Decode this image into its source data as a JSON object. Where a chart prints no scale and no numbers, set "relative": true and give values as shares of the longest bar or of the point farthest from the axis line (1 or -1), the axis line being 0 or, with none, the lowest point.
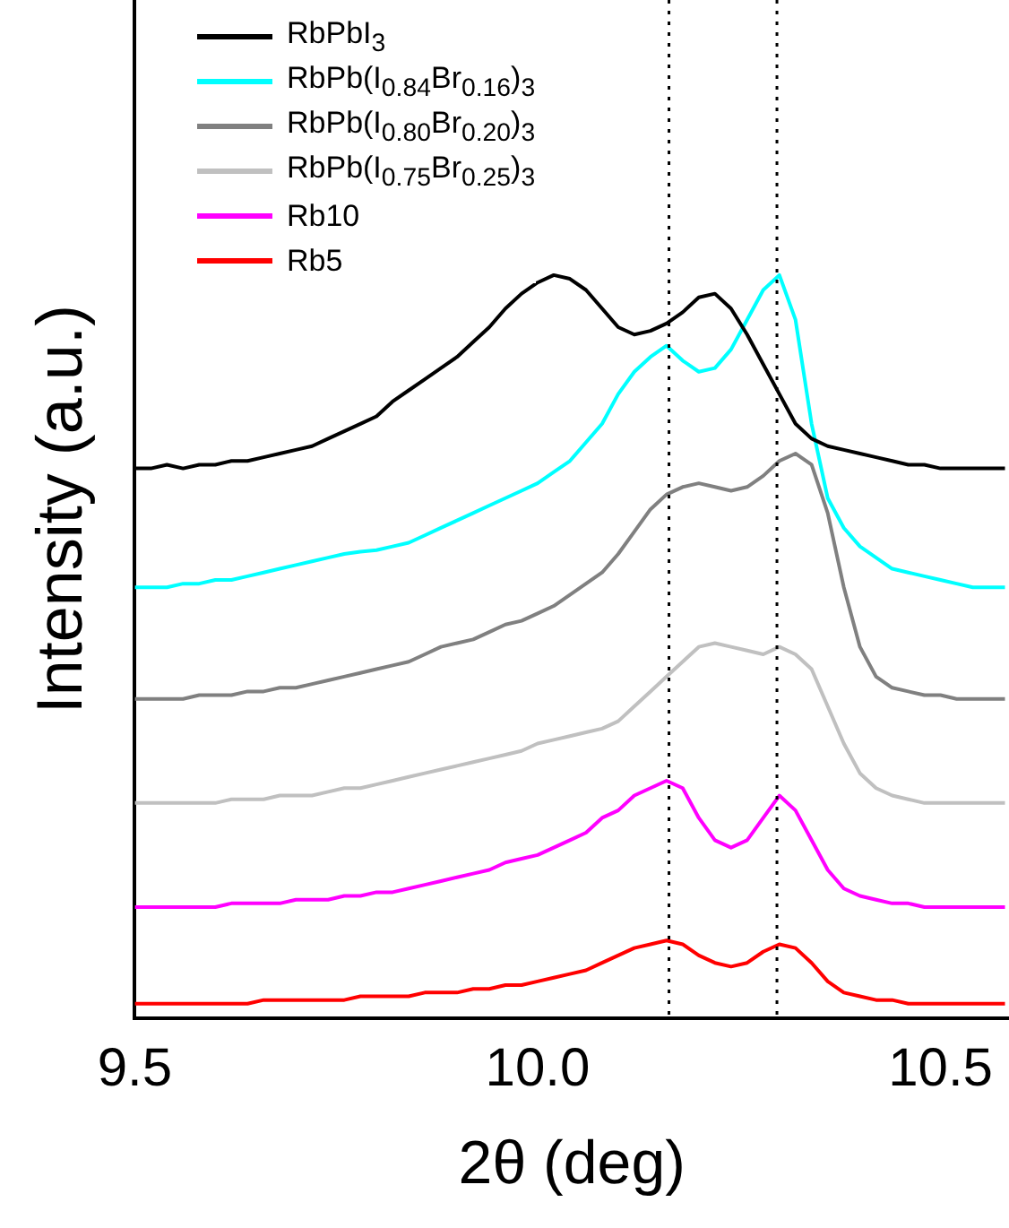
{
  "chart_data": {
    "type": "line",
    "xlabel": "2θ (deg)",
    "ylabel": "Intensity (a.u.)",
    "relative": true,
    "legend": "top left",
    "grid": false,
    "marker": "none",
    "line_style": "solid",
    "xlim": [
      9.5,
      10.585
    ],
    "xticks": [
      9.5,
      {
        "value": 10.0,
        "label": "10.0"
      },
      10.5
    ],
    "tick_labels": "x",
    "x": [
      9.5,
      9.52,
      9.54,
      9.56,
      9.58,
      9.6,
      9.62,
      9.64,
      9.66,
      9.68,
      9.7,
      9.72,
      9.74,
      9.76,
      9.78,
      9.8,
      9.82,
      9.84,
      9.86,
      9.88,
      9.9,
      9.92,
      9.94,
      9.96,
      9.98,
      10.0,
      10.02,
      10.04,
      10.06,
      10.08,
      10.1,
      10.12,
      10.14,
      10.16,
      10.18,
      10.2,
      10.22,
      10.24,
      10.26,
      10.28,
      10.3,
      10.32,
      10.34,
      10.36,
      10.38,
      10.4,
      10.42,
      10.44,
      10.46,
      10.48,
      10.5,
      10.52,
      10.54,
      10.56,
      10.58
    ],
    "ref_lines": [
      {
        "axis": "x",
        "value": 10.163,
        "color": "#000000",
        "line_style": "dotted"
      },
      {
        "axis": "x",
        "value": 10.297,
        "color": "#000000",
        "line_style": "dotted"
      }
    ],
    "series": [
      {
        "name": "RbPbI$_{3}$",
        "color": "#000000",
        "values": [
          0.74,
          0.74,
          0.745,
          0.74,
          0.745,
          0.745,
          0.75,
          0.75,
          0.755,
          0.76,
          0.765,
          0.77,
          0.78,
          0.79,
          0.8,
          0.81,
          0.83,
          0.845,
          0.86,
          0.875,
          0.89,
          0.91,
          0.93,
          0.955,
          0.975,
          0.99,
          1.0,
          0.995,
          0.98,
          0.955,
          0.93,
          0.92,
          0.925,
          0.935,
          0.95,
          0.97,
          0.975,
          0.955,
          0.92,
          0.88,
          0.84,
          0.8,
          0.78,
          0.77,
          0.765,
          0.76,
          0.755,
          0.75,
          0.745,
          0.745,
          0.74,
          0.74,
          0.74,
          0.74,
          0.74
        ]
      },
      {
        "name": "RbPb(I$_{0.84}$Br$_{0.16}$)$_{3}$",
        "color": "#00ffff",
        "values": [
          0.58,
          0.58,
          0.58,
          0.585,
          0.585,
          0.59,
          0.59,
          0.595,
          0.6,
          0.605,
          0.61,
          0.615,
          0.62,
          0.625,
          0.628,
          0.63,
          0.635,
          0.64,
          0.65,
          0.66,
          0.67,
          0.68,
          0.69,
          0.7,
          0.71,
          0.72,
          0.735,
          0.75,
          0.775,
          0.8,
          0.84,
          0.87,
          0.89,
          0.905,
          0.885,
          0.87,
          0.875,
          0.9,
          0.94,
          0.98,
          1.0,
          0.94,
          0.8,
          0.7,
          0.66,
          0.635,
          0.62,
          0.605,
          0.6,
          0.595,
          0.59,
          0.585,
          0.58,
          0.58,
          0.58
        ]
      },
      {
        "name": "RbPb(I$_{0.80}$Br$_{0.20}$)$_{3}$",
        "color": "#808080",
        "values": [
          0.43,
          0.43,
          0.43,
          0.43,
          0.435,
          0.435,
          0.435,
          0.44,
          0.44,
          0.445,
          0.445,
          0.45,
          0.455,
          0.46,
          0.465,
          0.47,
          0.475,
          0.48,
          0.49,
          0.5,
          0.505,
          0.51,
          0.52,
          0.53,
          0.535,
          0.545,
          0.555,
          0.57,
          0.585,
          0.6,
          0.625,
          0.655,
          0.685,
          0.705,
          0.715,
          0.72,
          0.715,
          0.71,
          0.715,
          0.73,
          0.75,
          0.76,
          0.745,
          0.68,
          0.58,
          0.5,
          0.46,
          0.445,
          0.44,
          0.435,
          0.435,
          0.43,
          0.43,
          0.43,
          0.43
        ]
      },
      {
        "name": "RbPb(I$_{0.75}$Br$_{0.25}$)$_{3}$",
        "color": "#c0c0c0",
        "values": [
          0.29,
          0.29,
          0.29,
          0.29,
          0.29,
          0.29,
          0.295,
          0.295,
          0.295,
          0.3,
          0.3,
          0.3,
          0.305,
          0.31,
          0.31,
          0.315,
          0.32,
          0.325,
          0.33,
          0.335,
          0.34,
          0.345,
          0.35,
          0.355,
          0.36,
          0.37,
          0.375,
          0.38,
          0.385,
          0.39,
          0.4,
          0.42,
          0.44,
          0.46,
          0.48,
          0.5,
          0.505,
          0.5,
          0.495,
          0.49,
          0.5,
          0.49,
          0.47,
          0.42,
          0.37,
          0.33,
          0.31,
          0.3,
          0.295,
          0.29,
          0.29,
          0.29,
          0.29,
          0.29,
          0.29
        ]
      },
      {
        "name": "Rb10",
        "color": "#ff00ff",
        "values": [
          0.15,
          0.15,
          0.15,
          0.15,
          0.15,
          0.15,
          0.155,
          0.155,
          0.155,
          0.155,
          0.16,
          0.16,
          0.16,
          0.165,
          0.165,
          0.17,
          0.17,
          0.175,
          0.18,
          0.185,
          0.19,
          0.195,
          0.2,
          0.21,
          0.215,
          0.22,
          0.23,
          0.24,
          0.25,
          0.27,
          0.28,
          0.3,
          0.31,
          0.32,
          0.31,
          0.27,
          0.24,
          0.23,
          0.24,
          0.27,
          0.3,
          0.28,
          0.24,
          0.2,
          0.175,
          0.165,
          0.16,
          0.155,
          0.155,
          0.15,
          0.15,
          0.15,
          0.15,
          0.15,
          0.15
        ]
      },
      {
        "name": "Rb5",
        "color": "#ff0000",
        "values": [
          0.02,
          0.02,
          0.02,
          0.02,
          0.02,
          0.02,
          0.02,
          0.02,
          0.025,
          0.025,
          0.025,
          0.025,
          0.025,
          0.025,
          0.03,
          0.03,
          0.03,
          0.03,
          0.035,
          0.035,
          0.035,
          0.04,
          0.04,
          0.045,
          0.045,
          0.05,
          0.055,
          0.06,
          0.065,
          0.075,
          0.085,
          0.095,
          0.1,
          0.105,
          0.1,
          0.085,
          0.075,
          0.07,
          0.075,
          0.09,
          0.1,
          0.095,
          0.075,
          0.05,
          0.035,
          0.03,
          0.025,
          0.025,
          0.02,
          0.02,
          0.02,
          0.02,
          0.02,
          0.02,
          0.02
        ]
      }
    ]
  }
}
